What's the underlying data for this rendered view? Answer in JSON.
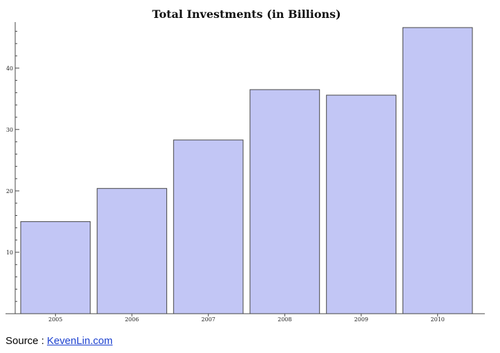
{
  "chart_data": {
    "type": "bar",
    "title": "Total Investments (in Billions)",
    "xlabel": "",
    "ylabel": "",
    "categories": [
      "2005",
      "2006",
      "2007",
      "2008",
      "2009",
      "2010"
    ],
    "values": [
      15,
      20.4,
      28.3,
      36.5,
      35.6,
      46.6
    ],
    "ylim": [
      0,
      47.5
    ],
    "yticks": [
      10,
      20,
      30,
      40
    ],
    "grid": false,
    "bar_color": "#c2c6f5"
  },
  "source": {
    "prefix": "Source : ",
    "link_text": "KevenLin.com"
  }
}
